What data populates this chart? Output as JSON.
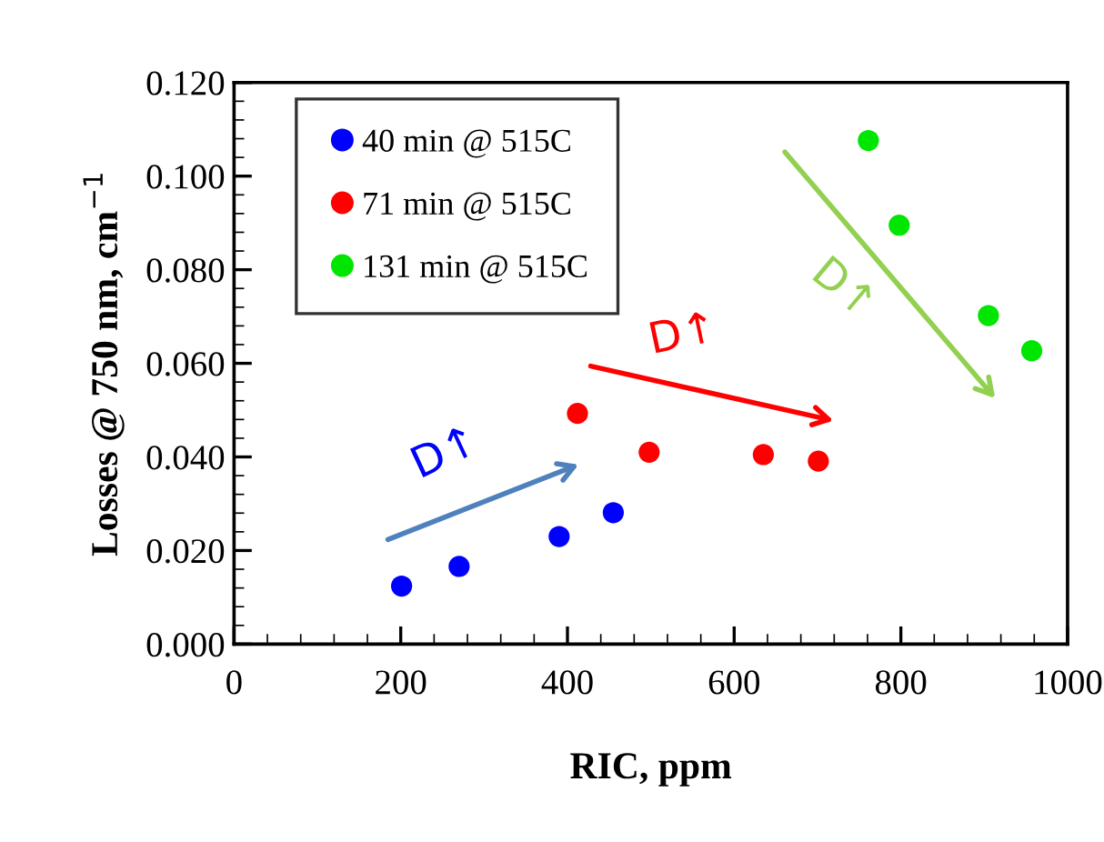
{
  "chart_data": {
    "type": "scatter",
    "xlabel": "RIC, ppm",
    "ylabel": "Losses @ 750 nm, cm$^{−1}$",
    "xlim": [
      0,
      1000
    ],
    "xticks": [
      0,
      200,
      400,
      600,
      800,
      1000
    ],
    "ylim": [
      0,
      0.12
    ],
    "yticks": [
      {
        "value": 0,
        "label": "0.000"
      },
      {
        "value": 0.02,
        "label": "0.020"
      },
      {
        "value": 0.04,
        "label": "0.040"
      },
      {
        "value": 0.06,
        "label": "0.060"
      },
      {
        "value": 0.08,
        "label": "0.080"
      },
      {
        "value": 0.1,
        "label": "0.100"
      },
      {
        "value": 0.12,
        "label": "0.120"
      }
    ],
    "grid": false,
    "legend": "top left",
    "marker": "circle",
    "series": [
      {
        "name": "40 min @ 515C",
        "color": "#0000ff",
        "x": [
          201,
          270,
          390,
          455
        ],
        "values": [
          0.0124,
          0.0166,
          0.023,
          0.0281
        ]
      },
      {
        "name": "71 min @ 515C",
        "color": "#ff0000",
        "x": [
          412,
          498,
          635,
          701
        ],
        "values": [
          0.0493,
          0.041,
          0.0405,
          0.0391
        ]
      },
      {
        "name": "131 min @ 515C",
        "color": "#00e600",
        "x": [
          761,
          798,
          905,
          957
        ],
        "values": [
          0.1076,
          0.0895,
          0.0702,
          0.0627
        ]
      }
    ],
    "annotations": [
      "D↑",
      "D↑",
      "D↑"
    ]
  }
}
